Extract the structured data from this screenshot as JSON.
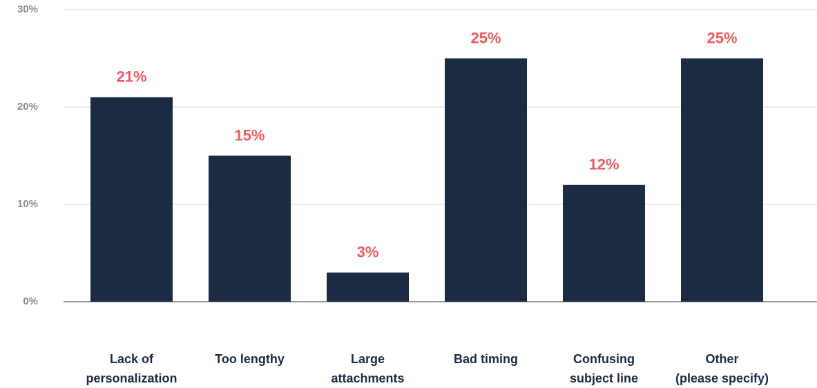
{
  "chart_data": {
    "type": "bar",
    "categories": [
      "Lack of\npersonalization",
      "Too lengthy",
      "Large\nattachments",
      "Bad timing",
      "Confusing\nsubject line",
      "Other\n(please specify)"
    ],
    "values": [
      21,
      15,
      3,
      25,
      12,
      25
    ],
    "value_labels": [
      "21%",
      "15%",
      "3%",
      "25%",
      "12%",
      "25%"
    ],
    "color": "#1b2b42",
    "value_label_color": "#f25a5d",
    "ylim": [
      0,
      30
    ],
    "yticks": [
      {
        "value": 0,
        "label": "0%"
      },
      {
        "value": 10,
        "label": "10%"
      },
      {
        "value": 20,
        "label": "20%"
      },
      {
        "value": 30,
        "label": "30%"
      }
    ],
    "grid": true
  }
}
